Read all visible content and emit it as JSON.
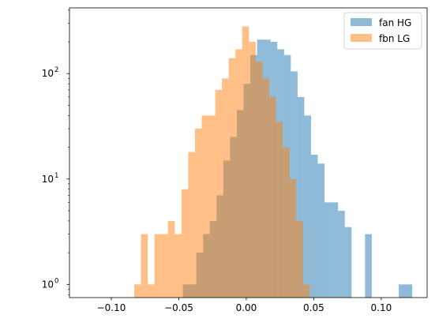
{
  "chart_data": {
    "type": "bar",
    "title": "",
    "xlabel": "",
    "ylabel": "",
    "yscale": "log",
    "xlim": [
      -0.131,
      0.134
    ],
    "ylim": [
      0.75,
      420
    ],
    "grid": false,
    "legend_position": "upper right",
    "x_ticks": [
      -0.1,
      -0.05,
      0.0,
      0.05,
      0.1
    ],
    "x_tick_labels": [
      "−0.10",
      "−0.05",
      "0.00",
      "0.05",
      "0.10"
    ],
    "y_ticks": [
      1,
      10,
      100
    ],
    "y_tick_labels": [
      {
        "base": "10",
        "exp": "0"
      },
      {
        "base": "10",
        "exp": "1"
      },
      {
        "base": "10",
        "exp": "2"
      }
    ],
    "series": [
      {
        "name": "fan HG",
        "color": "#1f77b4",
        "alpha": 0.5,
        "bins": [
          [
            -0.047,
            -0.042,
            1
          ],
          [
            -0.042,
            -0.037,
            1
          ],
          [
            -0.037,
            -0.032,
            2
          ],
          [
            -0.032,
            -0.027,
            3
          ],
          [
            -0.027,
            -0.022,
            4
          ],
          [
            -0.022,
            -0.017,
            7
          ],
          [
            -0.017,
            -0.012,
            15
          ],
          [
            -0.012,
            -0.007,
            25
          ],
          [
            -0.007,
            -0.002,
            45
          ],
          [
            -0.002,
            0.003,
            80
          ],
          [
            0.003,
            0.008,
            150
          ],
          [
            0.008,
            0.013,
            210
          ],
          [
            0.013,
            0.018,
            210
          ],
          [
            0.018,
            0.023,
            200
          ],
          [
            0.023,
            0.028,
            170
          ],
          [
            0.028,
            0.033,
            150
          ],
          [
            0.033,
            0.038,
            105
          ],
          [
            0.038,
            0.043,
            60
          ],
          [
            0.043,
            0.048,
            40
          ],
          [
            0.048,
            0.053,
            17
          ],
          [
            0.053,
            0.058,
            14
          ],
          [
            0.058,
            0.063,
            6
          ],
          [
            0.063,
            0.068,
            6
          ],
          [
            0.068,
            0.073,
            5
          ],
          [
            0.073,
            0.078,
            3.5
          ],
          [
            0.088,
            0.093,
            3
          ],
          [
            0.113,
            0.123,
            1
          ]
        ]
      },
      {
        "name": "fbn LG",
        "color": "#ff7f0e",
        "alpha": 0.5,
        "bins": [
          [
            -0.083,
            -0.078,
            1
          ],
          [
            -0.078,
            -0.073,
            3
          ],
          [
            -0.073,
            -0.068,
            1
          ],
          [
            -0.068,
            -0.063,
            3
          ],
          [
            -0.063,
            -0.058,
            3
          ],
          [
            -0.058,
            -0.053,
            4
          ],
          [
            -0.053,
            -0.048,
            3
          ],
          [
            -0.048,
            -0.043,
            8
          ],
          [
            -0.043,
            -0.038,
            18
          ],
          [
            -0.038,
            -0.033,
            30
          ],
          [
            -0.033,
            -0.028,
            40
          ],
          [
            -0.028,
            -0.023,
            40
          ],
          [
            -0.023,
            -0.018,
            70
          ],
          [
            -0.018,
            -0.013,
            90
          ],
          [
            -0.013,
            -0.008,
            140
          ],
          [
            -0.008,
            -0.003,
            170
          ],
          [
            -0.003,
            0.002,
            280
          ],
          [
            0.002,
            0.007,
            200
          ],
          [
            0.007,
            0.012,
            130
          ],
          [
            0.012,
            0.017,
            90
          ],
          [
            0.017,
            0.022,
            60
          ],
          [
            0.022,
            0.027,
            35
          ],
          [
            0.027,
            0.032,
            20
          ],
          [
            0.032,
            0.037,
            10
          ],
          [
            0.037,
            0.042,
            4
          ],
          [
            0.042,
            0.047,
            1
          ]
        ]
      }
    ]
  }
}
